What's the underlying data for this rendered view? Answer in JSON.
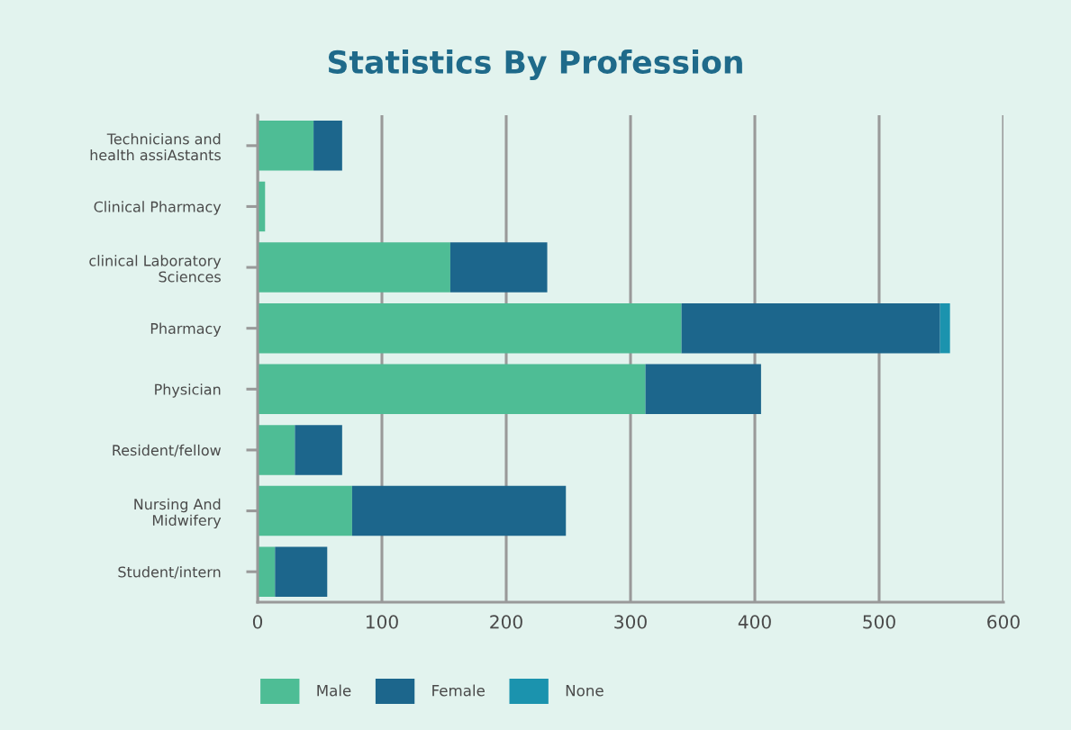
{
  "chart_data": {
    "type": "bar",
    "title": "Statistics By Profession",
    "orientation": "horizontal",
    "stacked": true,
    "categories": [
      "Technicians and\nhealth assiAstants",
      "Clinical Pharmacy",
      "clinical Laboratory\nSciences",
      "Pharmacy",
      "Physician",
      "Resident/fellow",
      "Nursing And\nMidwifery",
      "Student/intern"
    ],
    "series": [
      {
        "name": "Male",
        "color": "#4ebd95",
        "values": [
          45,
          6,
          155,
          341,
          312,
          30,
          76,
          14
        ]
      },
      {
        "name": "Female",
        "color": "#1c668c",
        "values": [
          23,
          0,
          78,
          208,
          93,
          38,
          172,
          42
        ]
      },
      {
        "name": "None",
        "color": "#1b93ae",
        "values": [
          0,
          0,
          0,
          8,
          0,
          0,
          0,
          0
        ]
      }
    ],
    "xlim": [
      0,
      600
    ],
    "xticks": [
      0,
      100,
      200,
      300,
      400,
      500,
      600
    ],
    "grid": "x",
    "legend": "bottom"
  }
}
